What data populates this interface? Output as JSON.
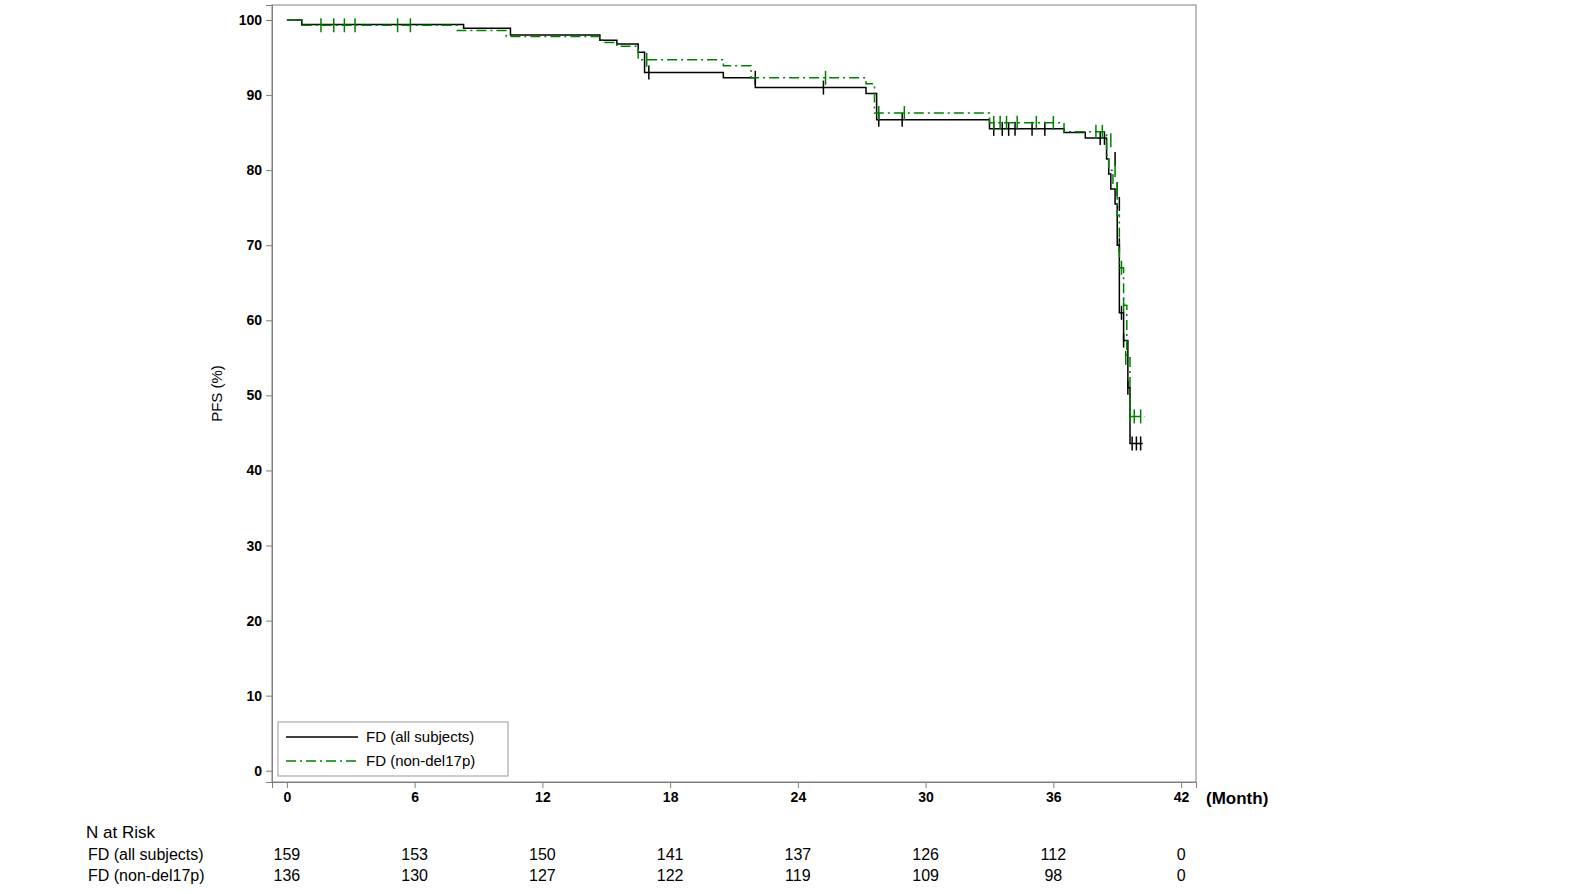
{
  "chart_data": {
    "type": "line",
    "ylabel": "PFS (%)",
    "xlabel": "(Month)",
    "xlim": [
      -0.7,
      42.7
    ],
    "ylim": [
      -1.5,
      102
    ],
    "xticks": [
      0,
      6,
      12,
      18,
      24,
      30,
      36,
      42
    ],
    "yticks": [
      0,
      10,
      20,
      30,
      40,
      50,
      60,
      70,
      80,
      90,
      100
    ],
    "legend": "lower left",
    "series": [
      {
        "name": "FD (all subjects)",
        "color": "#000000",
        "line_style": "solid",
        "x": [
          0,
          0.7,
          8.3,
          10.5,
          14.7,
          15.5,
          16.5,
          16.8,
          20.5,
          22.0,
          27.2,
          27.7,
          33.0,
          36.5,
          37.5,
          38.5,
          38.6,
          38.7,
          38.9,
          39.0,
          39.1,
          39.3,
          39.5,
          39.6,
          40.2
        ],
        "values": [
          100,
          99.4,
          98.9,
          98.0,
          97.3,
          96.8,
          95.7,
          93.0,
          92.3,
          91.0,
          90.2,
          86.7,
          85.5,
          85.0,
          84.3,
          81.5,
          79.5,
          77.5,
          75.5,
          70.0,
          61.0,
          57.3,
          51.0,
          43.6,
          43.6
        ],
        "censored_x": [
          17.0,
          22.0,
          25.2,
          27.8,
          28.9,
          33.2,
          33.6,
          33.9,
          34.2,
          35.0,
          35.6,
          38.2,
          38.4,
          38.9,
          39.0,
          39.1,
          39.1,
          39.2,
          39.3,
          39.5,
          39.7,
          39.9,
          40.1
        ],
        "censored_values": [
          93.0,
          92.3,
          91.0,
          86.7,
          86.7,
          85.5,
          85.5,
          85.5,
          85.5,
          85.5,
          85.5,
          84.3,
          84.3,
          81.5,
          77.5,
          75.5,
          70.0,
          61.0,
          57.3,
          51.0,
          43.6,
          43.6,
          43.6
        ]
      },
      {
        "name": "FD (non-del17p)",
        "color": "#008000",
        "line_style": "dashdot",
        "x": [
          0,
          0.7,
          8.0,
          10.3,
          14.8,
          15.5,
          16.5,
          20.5,
          21.8,
          27.2,
          27.6,
          33.0,
          36.5,
          38.5,
          38.6,
          38.8,
          39.0,
          39.1,
          39.3,
          39.45,
          39.6,
          40.3
        ],
        "values": [
          100,
          99.3,
          98.6,
          97.8,
          97.0,
          96.5,
          94.7,
          93.9,
          92.3,
          91.5,
          87.6,
          86.3,
          85.1,
          82.0,
          80.0,
          77.5,
          74.0,
          67.0,
          62.0,
          55.0,
          47.2,
          47.2
        ],
        "censored_x": [
          1.6,
          2.2,
          2.7,
          3.2,
          5.2,
          5.8,
          16.9,
          25.3,
          27.8,
          29.0,
          33.2,
          33.5,
          33.8,
          34.3,
          35.2,
          36.0,
          38.0,
          38.3,
          38.7,
          38.9,
          39.0,
          39.2,
          39.3,
          39.4,
          39.6,
          39.8,
          40.1
        ],
        "censored_values": [
          99.3,
          99.3,
          99.3,
          99.3,
          99.3,
          99.3,
          94.7,
          92.3,
          87.6,
          87.6,
          86.3,
          86.3,
          86.3,
          86.3,
          86.3,
          86.3,
          85.1,
          85.1,
          84.0,
          80.0,
          77.5,
          67.0,
          62.0,
          55.0,
          47.2,
          47.2,
          47.2
        ]
      }
    ],
    "risk_table": {
      "title": "N at Risk",
      "rows": [
        {
          "label": "FD (all subjects)",
          "values": [
            159,
            153,
            150,
            141,
            137,
            126,
            112,
            0
          ]
        },
        {
          "label": "FD (non-del17p)",
          "values": [
            136,
            130,
            127,
            122,
            119,
            109,
            98,
            0
          ]
        }
      ]
    }
  }
}
